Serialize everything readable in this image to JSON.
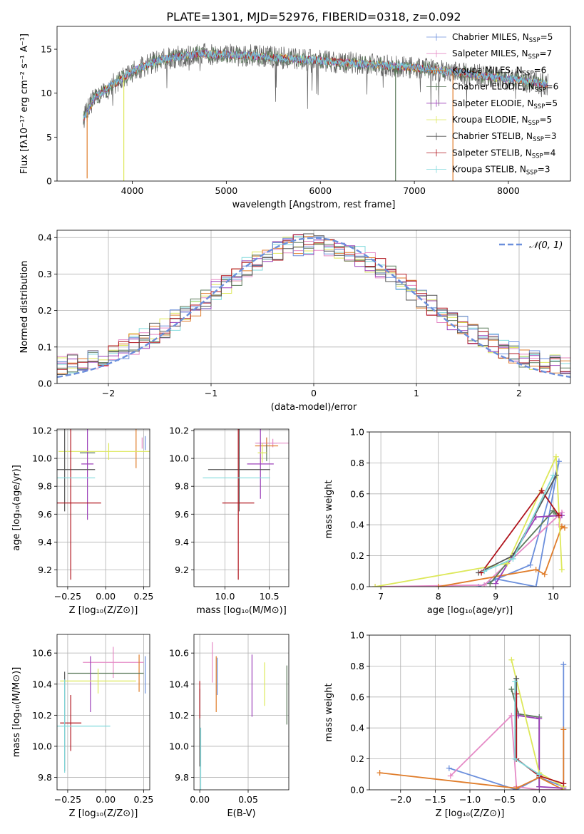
{
  "title": "PLATE=1301, MJD=52976, FIBERID=0318, z=0.092",
  "series_legend": [
    {
      "text": "Chabrier MILES, N",
      "sub": "SSP",
      "tail": "=5",
      "color": "#6b8fdc"
    },
    {
      "text": "Salpeter MILES, N",
      "sub": "SSP",
      "tail": "=7",
      "color": "#e58ac6"
    },
    {
      "text": "Kroupa MILES, N",
      "sub": "SSP",
      "tail": "=6",
      "color": "#e07d2b"
    },
    {
      "text": "Chabrier ELODIE, N",
      "sub": "SSP",
      "tail": "=6",
      "color": "#5b7a5b"
    },
    {
      "text": "Salpeter ELODIE, N",
      "sub": "SSP",
      "tail": "=5",
      "color": "#9b3fb8"
    },
    {
      "text": "Kroupa ELODIE, N",
      "sub": "SSP",
      "tail": "=5",
      "color": "#dde85a"
    },
    {
      "text": "Chabrier STELIB, N",
      "sub": "SSP",
      "tail": "=3",
      "color": "#555555"
    },
    {
      "text": "Salpeter STELIB, N",
      "sub": "SSP",
      "tail": "=4",
      "color": "#b0151e"
    },
    {
      "text": "Kroupa STELIB, N",
      "sub": "SSP",
      "tail": "=3",
      "color": "#7fd9dc"
    }
  ],
  "chart_data": [
    {
      "id": "spectrum",
      "type": "line",
      "xlabel": "wavelength [Angstrom, rest frame]",
      "ylabel": "Flux [fλ10⁻¹⁷ erg cm⁻² s⁻¹ A⁻¹]",
      "xlim": [
        3200,
        8660
      ],
      "ylim": [
        0,
        17.6
      ],
      "xticks": [
        4000,
        5000,
        6000,
        7000,
        8000
      ],
      "yticks": [
        0,
        5,
        10,
        15
      ],
      "data_range": [
        3480,
        8420
      ],
      "continuum": [
        [
          3480,
          7.0
        ],
        [
          3600,
          9.5
        ],
        [
          3800,
          11.0
        ],
        [
          4000,
          12.5
        ],
        [
          4300,
          13.8
        ],
        [
          4700,
          14.5
        ],
        [
          5200,
          14.3
        ],
        [
          5600,
          14.0
        ],
        [
          6000,
          13.7
        ],
        [
          6500,
          13.3
        ],
        [
          7000,
          12.9
        ],
        [
          7500,
          12.3
        ],
        [
          8000,
          11.6
        ],
        [
          8420,
          11.0
        ]
      ],
      "spikes": [
        [
          3520,
          0.3
        ],
        [
          3910,
          0
        ],
        [
          6800,
          0
        ],
        [
          7410,
          0
        ]
      ],
      "grid": false
    },
    {
      "id": "residual-hist",
      "type": "histogram",
      "xlabel": "(data-model)/error",
      "ylabel": "Normed distribution",
      "xlim": [
        -2.5,
        2.5
      ],
      "ylim": [
        0,
        0.42
      ],
      "xticks": [
        -2,
        -1,
        0,
        1,
        2
      ],
      "yticks": [
        0,
        0.1,
        0.2,
        0.3,
        0.4
      ],
      "bin_width": 0.1,
      "bin_range": [
        -2.5,
        2.5
      ],
      "gaussian_label": "𝒩(0, 1)",
      "gaussian_color": "#6b8fdc",
      "grid": true
    },
    {
      "id": "age-vs-Z",
      "type": "errorbar",
      "xlabel": "Z [log₁₀(Z/Z⊙)]",
      "ylabel": "age  [log₁₀(age/yr)]",
      "xlim": [
        -0.32,
        0.29
      ],
      "ylim": [
        9.08,
        10.21
      ],
      "xticks": [
        -0.25,
        0.0,
        0.25
      ],
      "xticklabels": [
        "−0.25",
        "0.00",
        "0.25"
      ],
      "yticks": [
        9.2,
        9.4,
        9.6,
        9.8,
        10.0,
        10.2
      ],
      "points": [
        {
          "series": 0,
          "x": 0.26,
          "y": 10.11,
          "xerr": 0.0,
          "yerr": 0.05
        },
        {
          "series": 1,
          "x": 0.24,
          "y": 10.11,
          "xerr": 0.0,
          "yerr": 0.04
        },
        {
          "series": 2,
          "x": 0.2,
          "y": 10.09,
          "xerr": 0.0,
          "yerr": 0.16
        },
        {
          "series": 3,
          "x": -0.12,
          "y": 10.04,
          "xerr": 0.05,
          "yerr": 0.0
        },
        {
          "series": 4,
          "x": -0.12,
          "y": 9.96,
          "xerr": 0.04,
          "yerr": 0.4
        },
        {
          "series": 5,
          "x": 0.02,
          "y": 10.05,
          "xerr": 0.33,
          "yerr": 0.06
        },
        {
          "series": 6,
          "x": -0.27,
          "y": 9.92,
          "xerr": 0.2,
          "yerr": 0.3
        },
        {
          "series": 7,
          "x": -0.23,
          "y": 9.68,
          "xerr": 0.2,
          "yerr": 0.55
        },
        {
          "series": 8,
          "x": -0.25,
          "y": 9.86,
          "xerr": 0.18,
          "yerr": 0.0
        }
      ],
      "grid": true
    },
    {
      "id": "age-vs-mass",
      "type": "errorbar",
      "xlabel": "mass [log₁₀(M/M⊙)]",
      "ylabel": "",
      "xlim": [
        9.65,
        10.72
      ],
      "ylim": [
        9.08,
        10.21
      ],
      "xticks": [
        10.0,
        10.5
      ],
      "xticklabels": [
        "10.0",
        "10.5"
      ],
      "yticks": [
        9.2,
        9.4,
        9.6,
        9.8,
        10.0,
        10.2
      ],
      "points": [
        {
          "series": 0,
          "x": 10.47,
          "y": 10.11,
          "xerr": 0.12,
          "yerr": 0.04
        },
        {
          "series": 1,
          "x": 10.54,
          "y": 10.11,
          "xerr": 0.2,
          "yerr": 0.03
        },
        {
          "series": 2,
          "x": 10.47,
          "y": 10.09,
          "xerr": 0.13,
          "yerr": 0.06
        },
        {
          "series": 3,
          "x": 10.47,
          "y": 10.04,
          "xerr": 0.0,
          "yerr": 0.06
        },
        {
          "series": 4,
          "x": 10.4,
          "y": 9.96,
          "xerr": 0.15,
          "yerr": 0.25
        },
        {
          "series": 5,
          "x": 10.42,
          "y": 10.04,
          "xerr": 0.05,
          "yerr": 0.07
        },
        {
          "series": 6,
          "x": 10.16,
          "y": 9.92,
          "xerr": 0.35,
          "yerr": 0.3
        },
        {
          "series": 7,
          "x": 10.15,
          "y": 9.68,
          "xerr": 0.18,
          "yerr": 0.55
        },
        {
          "series": 8,
          "x": 10.13,
          "y": 9.86,
          "xerr": 0.38,
          "yerr": 0.0
        }
      ],
      "grid": true
    },
    {
      "id": "weight-vs-age",
      "type": "line",
      "xlabel": "age  [log₁₀(age/yr)]",
      "ylabel": "mass weight",
      "xlim": [
        6.8,
        10.3
      ],
      "ylim": [
        0,
        1.0
      ],
      "xticks": [
        7,
        8,
        9,
        10
      ],
      "yticks": [
        0,
        0.2,
        0.4,
        0.6,
        0.8,
        1.0
      ],
      "series": [
        {
          "series": 0,
          "points": [
            [
              8.7,
              0.0
            ],
            [
              9.6,
              0.14
            ],
            [
              10.1,
              0.81
            ],
            [
              9.7,
              0.0
            ],
            [
              9.0,
              0.05
            ]
          ]
        },
        {
          "series": 1,
          "points": [
            [
              6.9,
              0.0
            ],
            [
              8.8,
              0.01
            ],
            [
              10.15,
              0.48
            ],
            [
              10.1,
              0.4
            ]
          ]
        },
        {
          "series": 2,
          "points": [
            [
              8.0,
              0.0
            ],
            [
              9.7,
              0.11
            ],
            [
              9.85,
              0.08
            ],
            [
              10.15,
              0.39
            ],
            [
              10.2,
              0.38
            ]
          ]
        },
        {
          "series": 3,
          "points": [
            [
              8.9,
              0.02
            ],
            [
              9.3,
              0.2
            ],
            [
              10.0,
              0.49
            ],
            [
              10.05,
              0.47
            ]
          ]
        },
        {
          "series": 4,
          "points": [
            [
              9.0,
              0.02
            ],
            [
              9.7,
              0.45
            ],
            [
              10.1,
              0.46
            ],
            [
              10.15,
              0.46
            ]
          ]
        },
        {
          "series": 5,
          "points": [
            [
              6.9,
              0.0
            ],
            [
              9.2,
              0.15
            ],
            [
              10.05,
              0.84
            ],
            [
              10.15,
              0.11
            ]
          ]
        },
        {
          "series": 6,
          "points": [
            [
              8.7,
              0.09
            ],
            [
              9.3,
              0.2
            ],
            [
              10.05,
              0.72
            ]
          ]
        },
        {
          "series": 7,
          "points": [
            [
              8.75,
              0.09
            ],
            [
              9.8,
              0.62
            ],
            [
              10.1,
              0.46
            ]
          ]
        },
        {
          "series": 8,
          "points": [
            [
              8.8,
              0.1
            ],
            [
              9.3,
              0.18
            ],
            [
              10.0,
              0.72
            ]
          ]
        }
      ],
      "grid": true
    },
    {
      "id": "mass-vs-Z",
      "type": "errorbar",
      "xlabel": "Z [log₁₀(Z/Z⊙)]",
      "ylabel": "mass [log₁₀(M/M⊙)]",
      "xlim": [
        -0.32,
        0.29
      ],
      "ylim": [
        9.72,
        10.72
      ],
      "xticks": [
        -0.25,
        0.0,
        0.25
      ],
      "xticklabels": [
        "−0.25",
        "0.00",
        "0.25"
      ],
      "yticks": [
        9.8,
        10.0,
        10.2,
        10.4,
        10.6
      ],
      "points": [
        {
          "series": 0,
          "x": 0.26,
          "y": 10.46,
          "xerr": 0.0,
          "yerr": 0.12
        },
        {
          "series": 1,
          "x": 0.05,
          "y": 10.54,
          "xerr": 0.2,
          "yerr": 0.1
        },
        {
          "series": 2,
          "x": 0.22,
          "y": 10.47,
          "xerr": 0.0,
          "yerr": 0.12
        },
        {
          "series": 3,
          "x": 0.0,
          "y": 10.47,
          "xerr": 0.25,
          "yerr": 0.0
        },
        {
          "series": 4,
          "x": -0.1,
          "y": 10.4,
          "xerr": 0.0,
          "yerr": 0.18
        },
        {
          "series": 5,
          "x": -0.05,
          "y": 10.42,
          "xerr": 0.25,
          "yerr": 0.08
        },
        {
          "series": 6,
          "x": -0.27,
          "y": 10.16,
          "xerr": 0.0,
          "yerr": 0.32
        },
        {
          "series": 7,
          "x": -0.23,
          "y": 10.15,
          "xerr": 0.07,
          "yerr": 0.18
        },
        {
          "series": 8,
          "x": -0.27,
          "y": 10.13,
          "xerr": 0.3,
          "yerr": 0.3
        }
      ],
      "grid": true
    },
    {
      "id": "mass-vs-EBV",
      "type": "errorbar",
      "xlabel": "E(B-V)",
      "ylabel": "",
      "xlim": [
        -0.006,
        0.092
      ],
      "ylim": [
        9.72,
        10.72
      ],
      "xticks": [
        0.0,
        0.05
      ],
      "xticklabels": [
        "0.00",
        "0.05"
      ],
      "yticks": [
        9.8,
        10.0,
        10.2,
        10.4,
        10.6
      ],
      "points": [
        {
          "series": 0,
          "x": 0.018,
          "y": 10.45,
          "xerr": 0.0,
          "yerr": 0.12
        },
        {
          "series": 1,
          "x": 0.013,
          "y": 10.54,
          "xerr": 0.0,
          "yerr": 0.13
        },
        {
          "series": 2,
          "x": 0.017,
          "y": 10.4,
          "xerr": 0.0,
          "yerr": 0.18
        },
        {
          "series": 3,
          "x": 0.09,
          "y": 10.33,
          "xerr": 0.0,
          "yerr": 0.19
        },
        {
          "series": 4,
          "x": 0.054,
          "y": 10.39,
          "xerr": 0.0,
          "yerr": 0.2
        },
        {
          "series": 5,
          "x": 0.067,
          "y": 10.4,
          "xerr": 0.0,
          "yerr": 0.14
        },
        {
          "series": 6,
          "x": 0.0,
          "y": 10.12,
          "xerr": 0.0,
          "yerr": 0.25
        },
        {
          "series": 7,
          "x": 0.0,
          "y": 10.3,
          "xerr": 0.0,
          "yerr": 0.12
        },
        {
          "series": 8,
          "x": 0.001,
          "y": 9.92,
          "xerr": 0.0,
          "yerr": 0.2
        }
      ],
      "grid": true
    },
    {
      "id": "weight-vs-Z",
      "type": "line",
      "xlabel": "Z [log₁₀(Z/Z⊙)]",
      "ylabel": "mass weight",
      "xlim": [
        -2.45,
        0.45
      ],
      "ylim": [
        0,
        1.0
      ],
      "xticks": [
        -2.0,
        -1.5,
        -1.0,
        -0.5,
        0.0
      ],
      "xticklabels": [
        "−2.0",
        "−1.5",
        "−1.0",
        "−0.5",
        "0.0"
      ],
      "yticks": [
        0,
        0.2,
        0.4,
        0.6,
        0.8,
        1.0
      ],
      "series": [
        {
          "series": 0,
          "points": [
            [
              -1.3,
              0.14
            ],
            [
              -0.33,
              0.0
            ],
            [
              0.0,
              0.08
            ],
            [
              0.35,
              0.02
            ],
            [
              0.35,
              0.81
            ]
          ]
        },
        {
          "series": 1,
          "points": [
            [
              -1.28,
              0.09
            ],
            [
              -0.4,
              0.48
            ],
            [
              -0.33,
              0.02
            ],
            [
              0.0,
              0.0
            ],
            [
              0.35,
              0.0
            ]
          ]
        },
        {
          "series": 2,
          "points": [
            [
              -2.3,
              0.11
            ],
            [
              -0.33,
              0.01
            ],
            [
              0.0,
              0.08
            ],
            [
              0.35,
              0.0
            ],
            [
              0.35,
              0.39
            ]
          ]
        },
        {
          "series": 3,
          "points": [
            [
              -0.4,
              0.65
            ],
            [
              -0.3,
              0.49
            ],
            [
              0.0,
              0.47
            ],
            [
              0.0,
              0.02
            ]
          ]
        },
        {
          "series": 4,
          "points": [
            [
              -0.3,
              0.48
            ],
            [
              0.0,
              0.46
            ],
            [
              0.0,
              0.02
            ],
            [
              0.35,
              0.01
            ]
          ]
        },
        {
          "series": 5,
          "points": [
            [
              -0.4,
              0.84
            ],
            [
              0.0,
              0.11
            ],
            [
              0.35,
              0.02
            ]
          ]
        },
        {
          "series": 6,
          "points": [
            [
              -0.33,
              0.72
            ],
            [
              -0.33,
              0.2
            ],
            [
              0.0,
              0.09
            ]
          ]
        },
        {
          "series": 7,
          "points": [
            [
              -0.33,
              0.62
            ],
            [
              -0.33,
              0.2
            ],
            [
              0.0,
              0.09
            ],
            [
              0.35,
              0.04
            ]
          ]
        },
        {
          "series": 8,
          "points": [
            [
              -0.35,
              0.7
            ],
            [
              -0.35,
              0.2
            ],
            [
              0.0,
              0.1
            ]
          ]
        }
      ],
      "grid": true
    }
  ]
}
